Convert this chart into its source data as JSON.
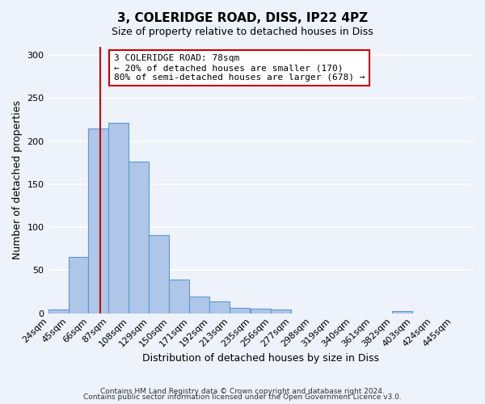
{
  "title": "3, COLERIDGE ROAD, DISS, IP22 4PZ",
  "subtitle": "Size of property relative to detached houses in Diss",
  "xlabel": "Distribution of detached houses by size in Diss",
  "ylabel": "Number of detached properties",
  "bar_labels": [
    "24sqm",
    "45sqm",
    "66sqm",
    "87sqm",
    "108sqm",
    "129sqm",
    "150sqm",
    "171sqm",
    "192sqm",
    "213sqm",
    "235sqm",
    "256sqm",
    "277sqm",
    "298sqm",
    "319sqm",
    "340sqm",
    "361sqm",
    "382sqm",
    "403sqm",
    "424sqm",
    "445sqm"
  ],
  "bar_values": [
    4,
    65,
    215,
    221,
    176,
    91,
    39,
    19,
    14,
    6,
    5,
    4,
    0,
    0,
    0,
    0,
    0,
    2,
    0,
    0,
    0
  ],
  "bar_color": "#aec6e8",
  "bar_edge_color": "#5b9bd5",
  "vline_x": 78,
  "vline_color": "#cc0000",
  "annotation_line1": "3 COLERIDGE ROAD: 78sqm",
  "annotation_line2": "← 20% of detached houses are smaller (170)",
  "annotation_line3": "80% of semi-detached houses are larger (678) →",
  "annotation_box_color": "#cc0000",
  "ylim": [
    0,
    310
  ],
  "yticks": [
    0,
    50,
    100,
    150,
    200,
    250,
    300
  ],
  "xlim_min": 24,
  "xlim_max": 466,
  "bin_width": 21,
  "bg_color": "#edf2fb",
  "grid_color": "#ffffff",
  "footer1": "Contains HM Land Registry data © Crown copyright and database right 2024.",
  "footer2": "Contains public sector information licensed under the Open Government Licence v3.0."
}
